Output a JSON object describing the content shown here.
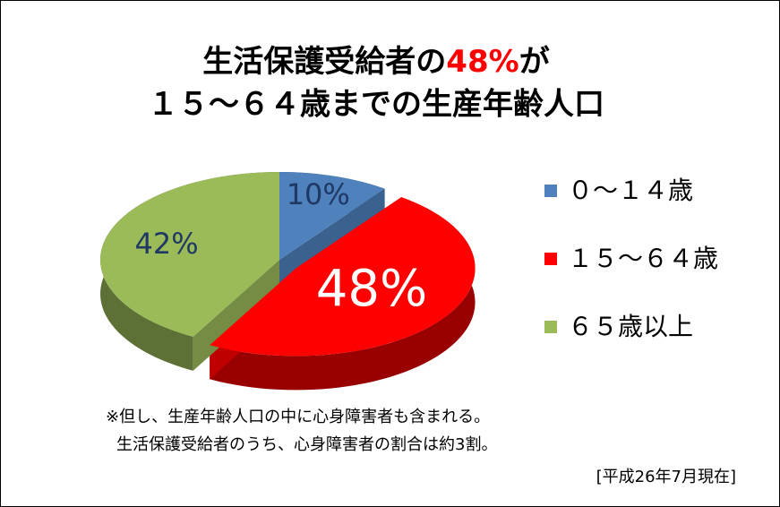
{
  "chart_data": {
    "type": "pie3d",
    "title": [
      "生活保護受給者の",
      "48%",
      "が"
    ],
    "subtitle": "１５～６４歳までの生産年齢人口",
    "categories": [
      "０～１４歳",
      "１５～６４歳",
      "６５歳以上"
    ],
    "values": [
      10,
      48,
      42
    ],
    "value_labels": [
      "10%",
      "48%",
      "42%"
    ],
    "colors": [
      "#4f81bd",
      "#ff0000",
      "#9bbb59"
    ],
    "title_highlight_color": "#ff0000",
    "legend": "right",
    "notes": [
      "※但し、生産年齢人口の中に心身障害者も含まれる。",
      "生活保護受給者のうち、心身障害者の割合は約3割。"
    ],
    "source": "[平成26年7月現在]"
  }
}
